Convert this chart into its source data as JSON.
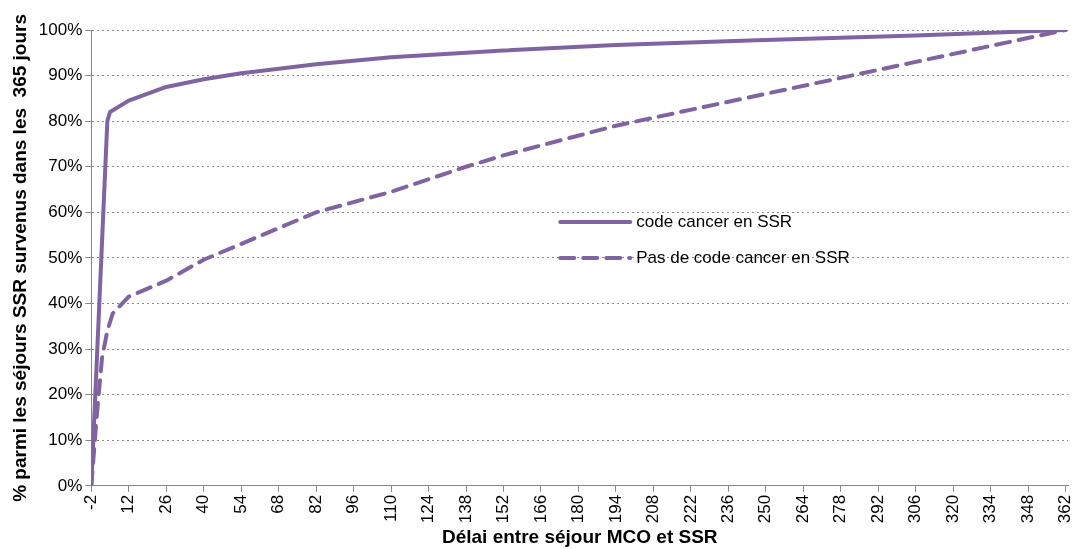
{
  "chart_data": {
    "type": "line",
    "xlabel": "Délai entre séjour MCO et SSR",
    "ylabel": "% parmi les séjours SSR survenus dans les  365 jours",
    "xlim": [
      -2,
      363
    ],
    "xticks": [
      -2,
      12,
      26,
      40,
      54,
      68,
      82,
      96,
      110,
      124,
      138,
      152,
      166,
      180,
      194,
      208,
      222,
      236,
      250,
      264,
      278,
      292,
      306,
      320,
      334,
      348,
      362
    ],
    "ylim": [
      0,
      100
    ],
    "yticks": [
      {
        "value": 0,
        "label": "0%"
      },
      {
        "value": 10,
        "label": "10%"
      },
      {
        "value": 20,
        "label": "20%"
      },
      {
        "value": 30,
        "label": "30%"
      },
      {
        "value": 40,
        "label": "40%"
      },
      {
        "value": 50,
        "label": "50%"
      },
      {
        "value": 60,
        "label": "60%"
      },
      {
        "value": 70,
        "label": "70%"
      },
      {
        "value": 80,
        "label": "80%"
      },
      {
        "value": 90,
        "label": "90%"
      },
      {
        "value": 100,
        "label": "100%"
      }
    ],
    "grid": "y",
    "legend": "right",
    "marker": "none",
    "series": [
      {
        "name": "code cancer en SSR",
        "color": "#8064a2",
        "line_style": "solid",
        "x": [
          -2,
          4,
          5,
          12,
          26,
          40,
          54,
          82,
          110,
          152,
          194,
          250,
          306,
          362
        ],
        "values": [
          0,
          80,
          82,
          84.5,
          87.5,
          89.2,
          90.5,
          92.5,
          94,
          95.5,
          96.7,
          97.8,
          98.8,
          100
        ]
      },
      {
        "name": "Pas de code cancer en SSR",
        "color": "#8064a2",
        "line_style": "dashed",
        "x": [
          -2,
          0,
          2,
          4,
          6,
          12,
          26,
          40,
          82,
          110,
          138,
          152,
          194,
          250,
          278,
          306,
          334,
          362
        ],
        "values": [
          0,
          15,
          28,
          34,
          37.8,
          41.5,
          45,
          49.6,
          60,
          64.5,
          70,
          72.5,
          79,
          86,
          89.5,
          93,
          96.5,
          100
        ]
      }
    ]
  }
}
